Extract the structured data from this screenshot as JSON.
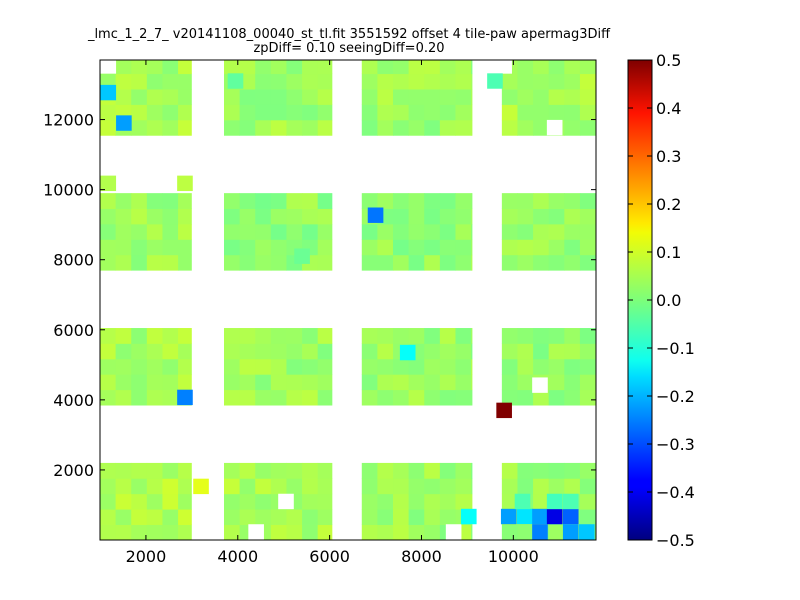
{
  "chart_data": {
    "type": "heatmap",
    "title_line1": "_lmc_1_2_7_ v20141108_00040_st_tl.fit 3551592 offset 4 tile-paw apermag3Diff",
    "title_line2": "zpDiff= 0.10 seeingDiff=0.20",
    "xlim": [
      1000,
      11800
    ],
    "ylim": [
      0,
      13700
    ],
    "xticks": [
      2000,
      4000,
      6000,
      8000,
      10000
    ],
    "xtick_labels": [
      "2000",
      "4000",
      "6000",
      "8000",
      "10000"
    ],
    "yticks": [
      2000,
      4000,
      6000,
      8000,
      10000,
      12000
    ],
    "ytick_labels": [
      "2000",
      "4000",
      "6000",
      "8000",
      "10000",
      "12000"
    ],
    "colorbar": {
      "colormap": "jet",
      "vmin": -0.5,
      "vmax": 0.5,
      "ticks": [
        0.5,
        0.4,
        0.3,
        0.2,
        0.1,
        0.0,
        -0.1,
        -0.2,
        -0.3,
        -0.4,
        -0.5
      ],
      "tick_labels": [
        "0.5",
        "0.4",
        "0.3",
        "0.2",
        "0.1",
        "0.0",
        "−0.1",
        "−0.2",
        "−0.3",
        "−0.4",
        "−0.5"
      ]
    },
    "cell_size": [
      340,
      440
    ],
    "detector_blocks": [
      {
        "x": [
          1000,
          2990
        ],
        "y": [
          0,
          2200
        ],
        "value": 0.05
      },
      {
        "x": [
          3700,
          6050
        ],
        "y": [
          0,
          2200
        ],
        "value": 0.04
      },
      {
        "x": [
          6700,
          9100
        ],
        "y": [
          0,
          2200
        ],
        "value": 0.03
      },
      {
        "x": [
          9750,
          11800
        ],
        "y": [
          0,
          2200
        ],
        "value": 0.03
      },
      {
        "x": [
          1000,
          2990
        ],
        "y": [
          3850,
          6050
        ],
        "value": 0.04
      },
      {
        "x": [
          3700,
          6050
        ],
        "y": [
          3850,
          6050
        ],
        "value": 0.03
      },
      {
        "x": [
          6700,
          9100
        ],
        "y": [
          3850,
          6050
        ],
        "value": 0.03
      },
      {
        "x": [
          9750,
          11800
        ],
        "y": [
          3850,
          6050
        ],
        "value": 0.02
      },
      {
        "x": [
          1000,
          2990
        ],
        "y": [
          7700,
          9900
        ],
        "value": 0.03
      },
      {
        "x": [
          3700,
          6050
        ],
        "y": [
          7700,
          9900
        ],
        "value": 0.02
      },
      {
        "x": [
          6700,
          9100
        ],
        "y": [
          7700,
          9900
        ],
        "value": 0.02
      },
      {
        "x": [
          9750,
          11800
        ],
        "y": [
          7700,
          9900
        ],
        "value": 0.03
      },
      {
        "x": [
          1000,
          2990
        ],
        "y": [
          11550,
          13700
        ],
        "value": 0.04
      },
      {
        "x": [
          3700,
          6050
        ],
        "y": [
          11550,
          13700
        ],
        "value": 0.03
      },
      {
        "x": [
          6700,
          9100
        ],
        "y": [
          11550,
          13700
        ],
        "value": 0.03
      },
      {
        "x": [
          9750,
          11800
        ],
        "y": [
          11550,
          13700
        ],
        "value": 0.04
      }
    ],
    "highlight_cells": [
      {
        "x": 1180,
        "y": 12770,
        "value": -0.18
      },
      {
        "x": 1520,
        "y": 11900,
        "value": -0.22
      },
      {
        "x": 1180,
        "y": 10180,
        "value": 0.05
      },
      {
        "x": 2850,
        "y": 10180,
        "value": 0.06
      },
      {
        "x": 2850,
        "y": 4070,
        "value": -0.25
      },
      {
        "x": 7000,
        "y": 9270,
        "value": -0.26
      },
      {
        "x": 7700,
        "y": 5350,
        "value": -0.12
      },
      {
        "x": 9800,
        "y": 3700,
        "value": 0.5
      },
      {
        "x": 3200,
        "y": 1530,
        "value": 0.1
      },
      {
        "x": 9030,
        "y": 670,
        "value": -0.12
      },
      {
        "x": 9900,
        "y": 670,
        "value": -0.22
      },
      {
        "x": 10250,
        "y": 670,
        "value": -0.15
      },
      {
        "x": 10580,
        "y": 670,
        "value": -0.22
      },
      {
        "x": 10900,
        "y": 670,
        "value": -0.4
      },
      {
        "x": 11250,
        "y": 670,
        "value": -0.28
      },
      {
        "x": 10580,
        "y": 230,
        "value": -0.25
      },
      {
        "x": 11250,
        "y": 230,
        "value": -0.22
      },
      {
        "x": 11600,
        "y": 230,
        "value": -0.18
      },
      {
        "x": 9600,
        "y": 13100,
        "value": -0.05
      },
      {
        "x": 10200,
        "y": 1100,
        "value": -0.05
      },
      {
        "x": 10900,
        "y": 1100,
        "value": -0.06
      },
      {
        "x": 11250,
        "y": 1100,
        "value": -0.05
      },
      {
        "x": 3950,
        "y": 13100,
        "value": -0.03
      },
      {
        "x": 5400,
        "y": 8100,
        "value": -0.02
      }
    ],
    "empty_cells": [
      {
        "x": 1180,
        "y": 13530
      },
      {
        "x": 9800,
        "y": 13530
      },
      {
        "x": 10900,
        "y": 11770
      },
      {
        "x": 10580,
        "y": 4420
      },
      {
        "x": 5050,
        "y": 1100
      },
      {
        "x": 8700,
        "y": 230
      },
      {
        "x": 4400,
        "y": 230
      }
    ]
  }
}
